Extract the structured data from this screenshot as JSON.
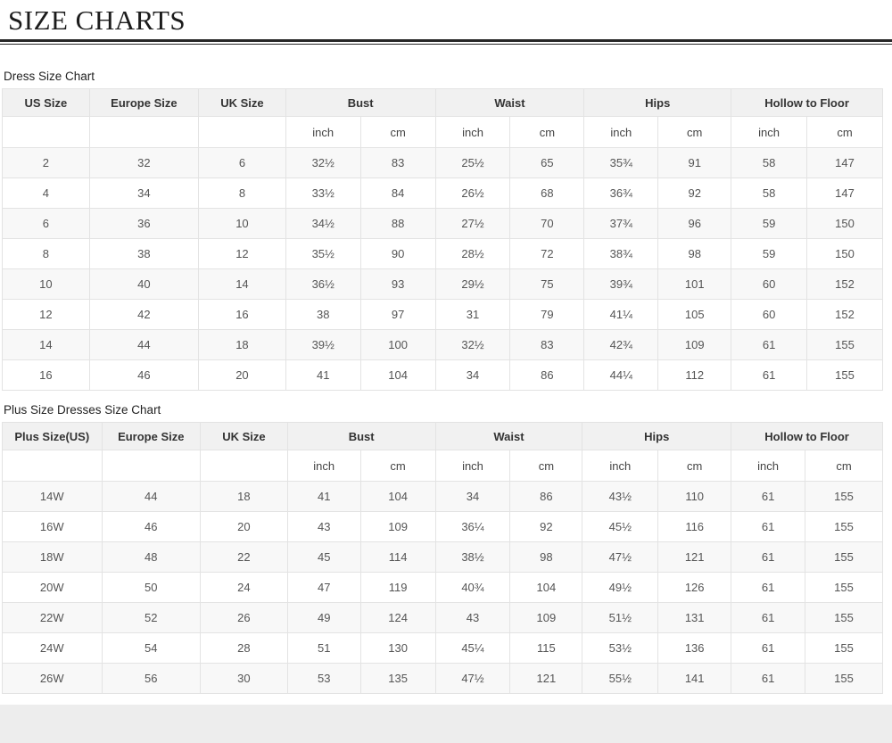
{
  "title": "SIZE CHARTS",
  "tables": [
    {
      "caption": "Dress Size Chart",
      "columns": [
        "US Size",
        "Europe Size",
        "UK Size"
      ],
      "groups": [
        "Bust",
        "Waist",
        "Hips",
        "Hollow to Floor"
      ],
      "units": [
        "inch",
        "cm"
      ],
      "rows": [
        [
          "2",
          "32",
          "6",
          "32½",
          "83",
          "25½",
          "65",
          "35¾",
          "91",
          "58",
          "147"
        ],
        [
          "4",
          "34",
          "8",
          "33½",
          "84",
          "26½",
          "68",
          "36¾",
          "92",
          "58",
          "147"
        ],
        [
          "6",
          "36",
          "10",
          "34½",
          "88",
          "27½",
          "70",
          "37¾",
          "96",
          "59",
          "150"
        ],
        [
          "8",
          "38",
          "12",
          "35½",
          "90",
          "28½",
          "72",
          "38¾",
          "98",
          "59",
          "150"
        ],
        [
          "10",
          "40",
          "14",
          "36½",
          "93",
          "29½",
          "75",
          "39¾",
          "101",
          "60",
          "152"
        ],
        [
          "12",
          "42",
          "16",
          "38",
          "97",
          "31",
          "79",
          "41¼",
          "105",
          "60",
          "152"
        ],
        [
          "14",
          "44",
          "18",
          "39½",
          "100",
          "32½",
          "83",
          "42¾",
          "109",
          "61",
          "155"
        ],
        [
          "16",
          "46",
          "20",
          "41",
          "104",
          "34",
          "86",
          "44¼",
          "112",
          "61",
          "155"
        ]
      ]
    },
    {
      "caption": "Plus Size Dresses Size Chart",
      "columns": [
        "Plus Size(US)",
        "Europe Size",
        "UK Size"
      ],
      "groups": [
        "Bust",
        "Waist",
        "Hips",
        "Hollow to Floor"
      ],
      "units": [
        "inch",
        "cm"
      ],
      "rows": [
        [
          "14W",
          "44",
          "18",
          "41",
          "104",
          "34",
          "86",
          "43½",
          "110",
          "61",
          "155"
        ],
        [
          "16W",
          "46",
          "20",
          "43",
          "109",
          "36¼",
          "92",
          "45½",
          "116",
          "61",
          "155"
        ],
        [
          "18W",
          "48",
          "22",
          "45",
          "114",
          "38½",
          "98",
          "47½",
          "121",
          "61",
          "155"
        ],
        [
          "20W",
          "50",
          "24",
          "47",
          "119",
          "40¾",
          "104",
          "49½",
          "126",
          "61",
          "155"
        ],
        [
          "22W",
          "52",
          "26",
          "49",
          "124",
          "43",
          "109",
          "51½",
          "131",
          "61",
          "155"
        ],
        [
          "24W",
          "54",
          "28",
          "51",
          "130",
          "45¼",
          "115",
          "53½",
          "136",
          "61",
          "155"
        ],
        [
          "26W",
          "56",
          "30",
          "53",
          "135",
          "47½",
          "121",
          "55½",
          "141",
          "61",
          "155"
        ]
      ]
    }
  ]
}
